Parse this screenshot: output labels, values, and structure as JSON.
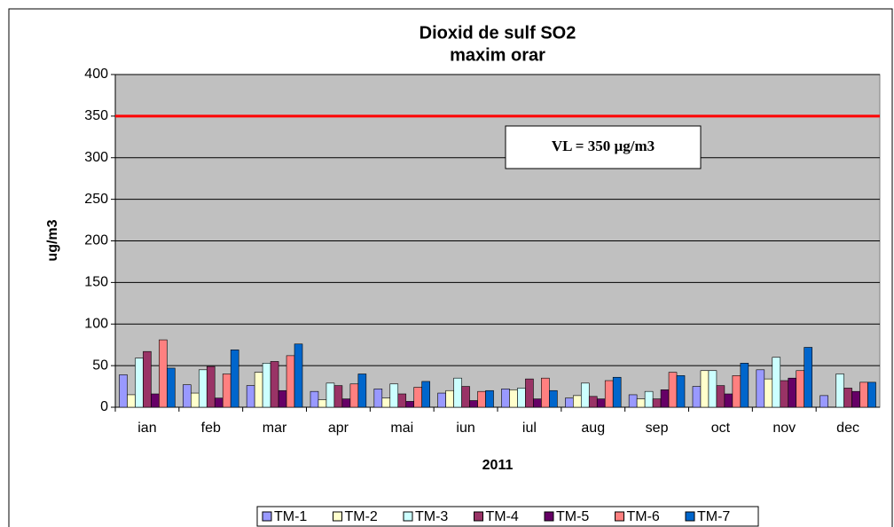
{
  "chart_data": {
    "type": "bar",
    "title": "Dioxid de sulf SO2",
    "subtitle": "maxim orar",
    "xlabel": "2011",
    "ylabel": "ug/m3",
    "categories": [
      "ian",
      "feb",
      "mar",
      "apr",
      "mai",
      "iun",
      "iul",
      "aug",
      "sep",
      "oct",
      "nov",
      "dec"
    ],
    "series": [
      {
        "name": "TM-1",
        "color": "#9999ff",
        "values": [
          39,
          27,
          26,
          19,
          22,
          17,
          22,
          11,
          15,
          25,
          45,
          14
        ]
      },
      {
        "name": "TM-2",
        "color": "#ffffcc",
        "values": [
          15,
          17,
          42,
          9,
          11,
          20,
          21,
          14,
          10,
          44,
          34,
          null
        ]
      },
      {
        "name": "TM-3",
        "color": "#ccffff",
        "values": [
          59,
          45,
          53,
          29,
          28,
          35,
          23,
          29,
          19,
          44,
          60,
          40
        ]
      },
      {
        "name": "TM-4",
        "color": "#993366",
        "values": [
          67,
          49,
          55,
          26,
          16,
          25,
          34,
          13,
          10,
          26,
          32,
          23
        ]
      },
      {
        "name": "TM-5",
        "color": "#660066",
        "values": [
          16,
          11,
          20,
          10,
          7,
          8,
          10,
          10,
          21,
          16,
          35,
          19
        ]
      },
      {
        "name": "TM-6",
        "color": "#ff8080",
        "values": [
          81,
          40,
          62,
          28,
          24,
          19,
          35,
          32,
          42,
          38,
          44,
          30
        ]
      },
      {
        "name": "TM-7",
        "color": "#0066cc",
        "values": [
          47,
          69,
          76,
          40,
          31,
          20,
          20,
          36,
          38,
          53,
          72,
          30
        ]
      }
    ],
    "ylim": [
      0,
      400
    ],
    "yticks": [
      0,
      50,
      100,
      150,
      200,
      250,
      300,
      350,
      400
    ],
    "grid": true,
    "reference_line": {
      "value": 350,
      "color": "#ff0000"
    },
    "annotation": "VL = 350 µg/m3",
    "legend": "bottom"
  }
}
